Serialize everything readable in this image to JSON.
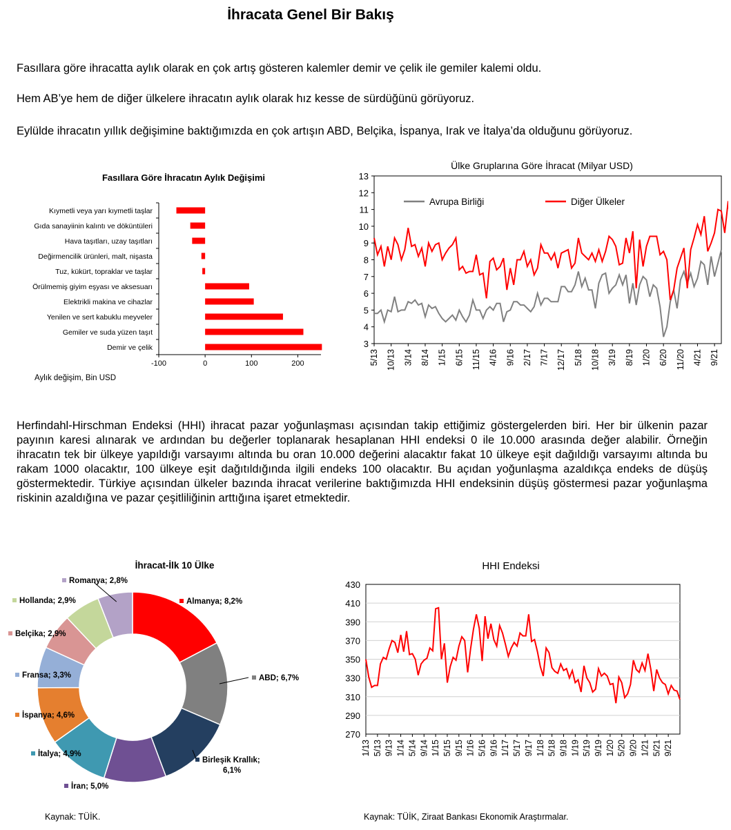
{
  "page": {
    "title": "İhracata Genel Bir Bakış",
    "paragraphs": [
      "Fasıllara göre ihracatta aylık olarak en çok artış gösteren kalemler demir ve çelik ile gemiler kalemi oldu.",
      "Hem AB’ye hem de diğer ülkelere ihracatın aylık olarak hız kesse de sürdüğünü görüyoruz.",
      "Eylülde ihracatın yıllık değişimine baktığımızda en çok artışın ABD, Belçika, İspanya, Irak ve İtalya’da olduğunu görüyoruz.",
      "Herfindahl-Hirschman Endeksi (HHI) ihracat pazar yoğunlaşması açısından takip ettiğimiz göstergelerden biri. Her bir ülkenin pazar payının karesi alınarak ve ardından bu değerler toplanarak hesaplanan HHI endeksi 0 ile 10.000 arasında değer alabilir. Örneğin ihracatın tek bir ülkeye yapıldığı varsayımı altında bu oran 10.000 değerini alacaktır fakat 10 ülkeye eşit dağıldığı varsayımı altında bu rakam 1000 olacaktır, 100 ülkeye eşit dağıtıldığında ilgili endeks 100 olacaktır. Bu açıdan yoğunlaşma azaldıkça endeks de düşüş göstermektedir. Türkiye açısından ülkeler bazında ihracat verilerine baktığımızda HHI endeksinin düşüş göstermesi pazar yoğunlaşma riskinin azaldığına ve pazar çeşitliliğinin arttığına işaret etmektedir."
    ],
    "source_left": "Kaynak: TÜİK.",
    "source_right": "Kaynak: TÜİK, Ziraat Bankası Ekonomik Araştırmalar."
  },
  "chart_data": [
    {
      "type": "bar",
      "orientation": "horizontal",
      "title": "Fasıllara Göre İhracatın Aylık Değişimi",
      "xlabel": "Aylık değişim, Bin USD",
      "categories": [
        "Kıymetli veya yarı kıymetli taşlar",
        "Gıda sanayiinin kalıntı ve döküntüleri",
        "Hava taşıtları, uzay taşıtları",
        "Değirmencilik ürünleri, malt, nişasta",
        "Tuz, kükürt, topraklar ve taşlar",
        "Örülmemiş giyim eşyası ve aksesuarı",
        "Elektrikli makina ve cihazlar",
        "Yenilen ve sert kabuklu meyveler",
        "Gemiler ve suda yüzen taşıt",
        "Demir ve çelik"
      ],
      "values": [
        -62,
        -32,
        -28,
        -8,
        -6,
        95,
        105,
        168,
        212,
        252
      ],
      "xlim": [
        -100,
        250
      ],
      "xticks": [
        "-100",
        "0",
        "100",
        "200"
      ],
      "color": "#ff0000"
    },
    {
      "type": "line",
      "title": "Ülke Gruplarına Göre İhracat (Milyar USD)",
      "ylim": [
        3,
        13
      ],
      "yticks": [
        "3",
        "4",
        "5",
        "6",
        "7",
        "8",
        "9",
        "10",
        "11",
        "12",
        "13"
      ],
      "xticks": [
        "5/13",
        "10/13",
        "3/14",
        "8/14",
        "1/15",
        "6/15",
        "11/15",
        "4/16",
        "9/16",
        "2/17",
        "7/17",
        "12/17",
        "5/18",
        "10/18",
        "3/19",
        "8/19",
        "1/20",
        "6/20",
        "11/20",
        "4/21",
        "9/21"
      ],
      "legend": "top-left",
      "series": [
        {
          "name": "Avrupa Birliği",
          "color": "#808080",
          "values": [
            4.8,
            4.8,
            5.0,
            4.3,
            5.0,
            4.9,
            5.8,
            4.9,
            5.0,
            5.0,
            5.5,
            5.4,
            5.6,
            5.3,
            5.4,
            4.6,
            5.3,
            5.1,
            5.2,
            4.8,
            4.5,
            4.3,
            4.5,
            4.7,
            4.4,
            5.0,
            4.6,
            4.3,
            4.7,
            5.6,
            5.0,
            5.0,
            4.5,
            5.0,
            5.2,
            5.0,
            5.4,
            5.4,
            4.3,
            4.9,
            5.0,
            5.5,
            5.5,
            5.3,
            5.3,
            5.1,
            4.9,
            5.2,
            6.0,
            5.3,
            5.7,
            5.7,
            5.5,
            5.5,
            5.5,
            6.4,
            6.4,
            6.1,
            6.1,
            6.5,
            7.3,
            6.4,
            6.9,
            6.2,
            6.2,
            5.1,
            6.6,
            7.1,
            7.2,
            6.0,
            6.3,
            6.5,
            7.1,
            6.5,
            7.1,
            5.4,
            6.6,
            5.3,
            6.5,
            7.0,
            6.8,
            5.8,
            6.5,
            6.3,
            5.2,
            3.4,
            4.0,
            5.5,
            6.2,
            5.1,
            6.8,
            7.3,
            6.6,
            7.2,
            6.4,
            6.9,
            7.9,
            7.7,
            6.5,
            8.2,
            7.0,
            7.8,
            8.6
          ]
        },
        {
          "name": "Diğer Ülkeler",
          "color": "#ff0000",
          "values": [
            9.3,
            8.3,
            8.8,
            7.6,
            8.8,
            8.0,
            9.3,
            8.9,
            8.0,
            8.6,
            9.9,
            8.8,
            8.9,
            8.2,
            8.7,
            7.6,
            9.0,
            8.5,
            8.9,
            9.0,
            8.0,
            8.4,
            8.7,
            8.9,
            9.3,
            7.4,
            7.6,
            7.2,
            7.3,
            7.3,
            8.3,
            7.1,
            7.2,
            5.7,
            7.9,
            8.1,
            7.4,
            7.6,
            8.1,
            6.2,
            7.5,
            6.5,
            8.0,
            8.0,
            8.5,
            7.6,
            8.0,
            7.1,
            7.5,
            8.9,
            8.4,
            8.4,
            8.0,
            8.4,
            7.5,
            8.4,
            8.5,
            8.6,
            7.5,
            7.8,
            9.3,
            8.4,
            8.2,
            8.0,
            8.4,
            7.9,
            8.6,
            7.9,
            8.5,
            9.4,
            9.2,
            8.8,
            7.7,
            7.8,
            9.3,
            8.4,
            9.7,
            6.3,
            9.2,
            7.6,
            8.8,
            9.4,
            9.4,
            9.4,
            8.3,
            8.5,
            8.0,
            5.6,
            6.2,
            7.5,
            8.1,
            8.7,
            6.3,
            8.6,
            9.3,
            10.1,
            9.5,
            10.6,
            8.5,
            9.0,
            9.6,
            11.0,
            10.9,
            9.6,
            11.5,
            9.3,
            11.0,
            11.5,
            12.3
          ]
        }
      ]
    },
    {
      "type": "pie",
      "title": "İhracat-İlk 10 Ülke",
      "slices": [
        {
          "label": "Almanya; 8,2%",
          "value": 8.2,
          "color": "#ff0000"
        },
        {
          "label": "ABD; 6,7%",
          "value": 6.7,
          "color": "#808080"
        },
        {
          "label": "Birleşik Krallık; 6,1%",
          "value": 6.1,
          "color": "#243f60"
        },
        {
          "label": "İran; 5,0%",
          "value": 5.0,
          "color": "#6f5093"
        },
        {
          "label": "İtalya; 4,9%",
          "value": 4.9,
          "color": "#3f99b1"
        },
        {
          "label": "İspanya; 4,6%",
          "value": 4.6,
          "color": "#e57f2f"
        },
        {
          "label": "Fransa; 3,3%",
          "value": 3.3,
          "color": "#95afd7"
        },
        {
          "label": "Belçika; 2,9%",
          "value": 2.9,
          "color": "#d99594"
        },
        {
          "label": "Hollanda; 2,9%",
          "value": 2.9,
          "color": "#c4d79b"
        },
        {
          "label": "Romanya; 2,8%",
          "value": 2.8,
          "color": "#b3a2c7"
        }
      ]
    },
    {
      "type": "line",
      "title": "HHI Endeksi",
      "ylim": [
        270,
        430
      ],
      "yticks": [
        "270",
        "290",
        "310",
        "330",
        "350",
        "370",
        "390",
        "410",
        "430"
      ],
      "xticks": [
        "1/13",
        "5/13",
        "9/13",
        "1/14",
        "5/14",
        "9/14",
        "1/15",
        "5/15",
        "9/15",
        "1/16",
        "5/16",
        "9/16",
        "1/17",
        "5/17",
        "9/17",
        "1/18",
        "5/18",
        "9/18",
        "1/19",
        "5/19",
        "9/19",
        "1/20",
        "5/20",
        "9/20",
        "1/21",
        "5/21",
        "9/21"
      ],
      "series": [
        {
          "color": "#ff0000",
          "values": [
            350,
            331,
            320,
            322,
            322,
            345,
            352,
            350,
            361,
            370,
            368,
            357,
            376,
            358,
            380,
            355,
            356,
            350,
            333,
            345,
            349,
            351,
            362,
            359,
            404,
            405,
            350,
            367,
            325,
            342,
            352,
            349,
            364,
            374,
            370,
            336,
            361,
            382,
            398,
            383,
            348,
            396,
            372,
            388,
            371,
            364,
            386,
            378,
            366,
            353,
            362,
            368,
            364,
            378,
            375,
            375,
            398,
            369,
            371,
            358,
            342,
            332,
            362,
            357,
            341,
            337,
            335,
            345,
            338,
            340,
            330,
            338,
            325,
            328,
            315,
            343,
            330,
            325,
            315,
            318,
            340,
            332,
            335,
            332,
            323,
            324,
            303,
            331,
            325,
            309,
            313,
            323,
            349,
            339,
            336,
            346,
            338,
            356,
            339,
            316,
            339,
            330,
            325,
            323,
            313,
            322,
            317,
            316,
            307
          ]
        }
      ]
    }
  ]
}
